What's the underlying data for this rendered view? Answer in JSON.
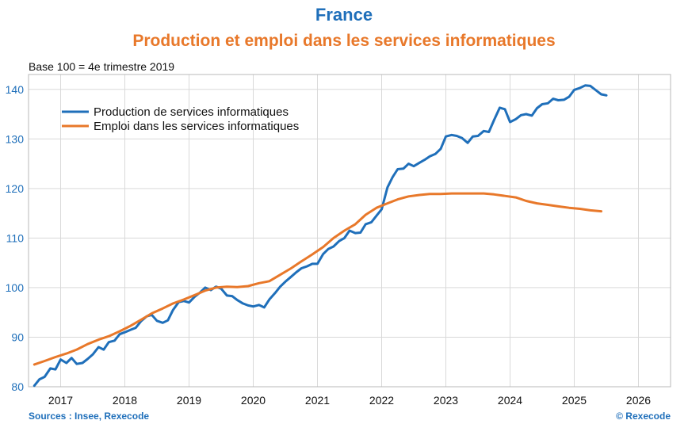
{
  "chart_data": {
    "type": "line",
    "title": "France",
    "subtitle": "Production et emploi dans les services informatiques",
    "ylabel": "Base 100 = 4e trimestre 2019",
    "source": "Sources : Insee, Rexecode",
    "copyright": "© Rexecode",
    "ylim": [
      80,
      143
    ],
    "yticks": [
      80,
      90,
      100,
      110,
      120,
      130,
      140
    ],
    "xlim": [
      2016.5,
      2026.5
    ],
    "xtick_labels": [
      "2017",
      "2018",
      "2019",
      "2020",
      "2021",
      "2022",
      "2023",
      "2024",
      "2025",
      "2026"
    ],
    "legend_position": "top-left",
    "series": [
      {
        "name": "Production de services informatiques",
        "color": "#1f6fba",
        "x": [
          2016.59,
          2016.67,
          2016.75,
          2016.84,
          2016.92,
          2017.0,
          2017.09,
          2017.17,
          2017.25,
          2017.34,
          2017.42,
          2017.5,
          2017.59,
          2017.67,
          2017.75,
          2017.84,
          2017.92,
          2018.0,
          2018.09,
          2018.17,
          2018.25,
          2018.34,
          2018.42,
          2018.5,
          2018.59,
          2018.67,
          2018.75,
          2018.84,
          2018.92,
          2019.0,
          2019.09,
          2019.17,
          2019.25,
          2019.34,
          2019.42,
          2019.5,
          2019.59,
          2019.67,
          2019.75,
          2019.84,
          2019.92,
          2020.0,
          2020.09,
          2020.17,
          2020.25,
          2020.34,
          2020.42,
          2020.5,
          2020.59,
          2020.67,
          2020.75,
          2020.84,
          2020.92,
          2021.0,
          2021.09,
          2021.17,
          2021.25,
          2021.34,
          2021.42,
          2021.5,
          2021.59,
          2021.67,
          2021.75,
          2021.84,
          2021.92,
          2022.0,
          2022.09,
          2022.17,
          2022.25,
          2022.34,
          2022.42,
          2022.5,
          2022.59,
          2022.67,
          2022.75,
          2022.84,
          2022.92,
          2023.0,
          2023.09,
          2023.17,
          2023.25,
          2023.34,
          2023.42,
          2023.5,
          2023.59,
          2023.67,
          2023.75,
          2023.84,
          2023.92,
          2024.0,
          2024.09,
          2024.17,
          2024.25,
          2024.34,
          2024.42,
          2024.5,
          2024.59,
          2024.67,
          2024.75,
          2024.84,
          2024.92,
          2025.0,
          2025.09,
          2025.17,
          2025.25,
          2025.34,
          2025.42,
          2025.5
        ],
        "values": [
          80.2,
          81.5,
          82.0,
          83.7,
          83.5,
          85.5,
          84.8,
          85.8,
          84.6,
          84.8,
          85.6,
          86.5,
          88.0,
          87.5,
          89.0,
          89.3,
          90.6,
          91.0,
          91.5,
          91.9,
          93.2,
          94.2,
          94.5,
          93.3,
          92.9,
          93.4,
          95.5,
          97.1,
          97.3,
          97.0,
          98.2,
          99.0,
          100.0,
          99.5,
          100.2,
          99.8,
          98.4,
          98.3,
          97.5,
          96.8,
          96.4,
          96.2,
          96.5,
          96.0,
          97.6,
          98.9,
          100.2,
          101.2,
          102.2,
          103.1,
          103.9,
          104.3,
          104.8,
          104.8,
          106.8,
          107.8,
          108.3,
          109.4,
          110.0,
          111.5,
          111.0,
          111.1,
          112.8,
          113.2,
          114.5,
          115.8,
          120.2,
          122.3,
          123.9,
          124.0,
          125.0,
          124.5,
          125.2,
          125.8,
          126.5,
          127.0,
          128.0,
          130.5,
          130.8,
          130.6,
          130.2,
          129.2,
          130.5,
          130.6,
          131.6,
          131.4,
          133.8,
          136.3,
          136.0,
          133.4,
          134.0,
          134.8,
          135.0,
          134.7,
          136.2,
          137.0,
          137.2,
          138.1,
          137.8,
          137.9,
          138.5,
          139.9,
          140.3,
          140.8,
          140.7,
          139.8,
          139.0,
          138.8
        ]
      },
      {
        "name": "Emploi dans les services informatiques",
        "color": "#e8782a",
        "x": [
          2016.59,
          2016.75,
          2016.92,
          2017.09,
          2017.25,
          2017.42,
          2017.59,
          2017.75,
          2017.92,
          2018.09,
          2018.25,
          2018.42,
          2018.59,
          2018.75,
          2018.92,
          2019.09,
          2019.25,
          2019.42,
          2019.59,
          2019.75,
          2019.92,
          2020.09,
          2020.25,
          2020.42,
          2020.59,
          2020.75,
          2020.92,
          2021.09,
          2021.25,
          2021.42,
          2021.59,
          2021.75,
          2021.92,
          2022.09,
          2022.25,
          2022.42,
          2022.59,
          2022.75,
          2022.92,
          2023.09,
          2023.25,
          2023.42,
          2023.59,
          2023.75,
          2023.92,
          2024.09,
          2024.25,
          2024.42,
          2024.59,
          2024.75,
          2024.92,
          2025.09,
          2025.25,
          2025.42
        ],
        "values": [
          84.5,
          85.2,
          86.0,
          86.7,
          87.5,
          88.6,
          89.5,
          90.2,
          91.2,
          92.3,
          93.5,
          94.8,
          95.8,
          96.8,
          97.6,
          98.5,
          99.4,
          100.0,
          100.2,
          100.1,
          100.3,
          100.9,
          101.3,
          102.6,
          103.9,
          105.3,
          106.7,
          108.2,
          110.0,
          111.5,
          112.8,
          114.7,
          116.1,
          117.0,
          117.8,
          118.4,
          118.7,
          118.9,
          118.9,
          119.0,
          119.0,
          119.0,
          119.0,
          118.8,
          118.5,
          118.2,
          117.5,
          117.0,
          116.7,
          116.4,
          116.1,
          115.9,
          115.6,
          115.4
        ]
      }
    ]
  }
}
